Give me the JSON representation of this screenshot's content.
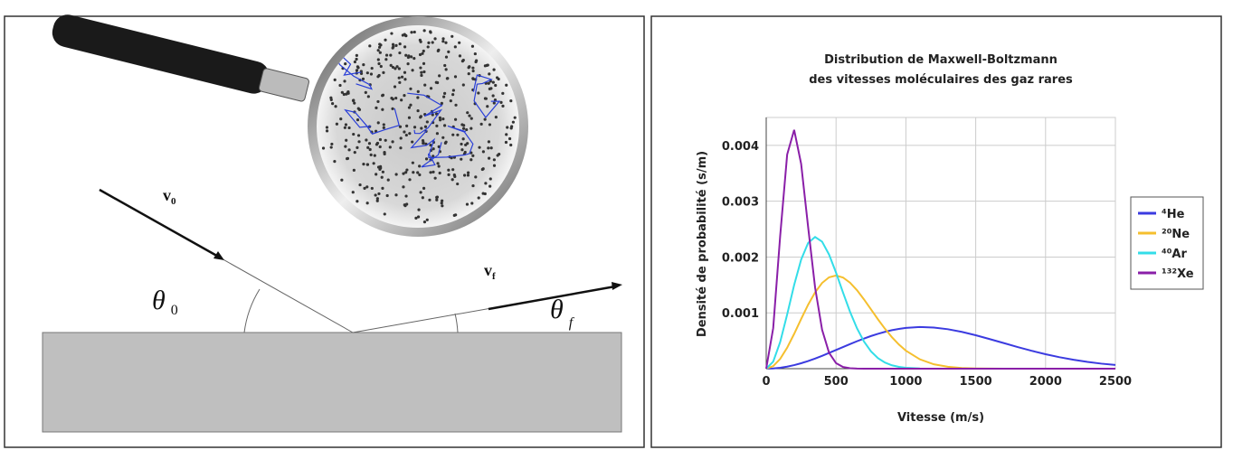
{
  "diagram": {
    "incoming": {
      "symbol": "v",
      "subscript": "0"
    },
    "outgoing": {
      "symbol": "v",
      "subscript": "f"
    },
    "angle_in": {
      "symbol": "θ",
      "subscript": "0"
    },
    "angle_out": {
      "symbol": "θ",
      "subscript": "f"
    }
  },
  "chart_data": {
    "type": "line",
    "title": [
      "Distribution de Maxwell-Boltzmann",
      "des vitesses moléculaires des gaz rares"
    ],
    "x_label": "Vitesse (m/s)",
    "y_label": "Densité de probabilité (s/m)",
    "x": [
      0,
      50,
      100,
      150,
      200,
      250,
      300,
      350,
      400,
      450,
      500,
      550,
      600,
      650,
      700,
      750,
      800,
      850,
      900,
      950,
      1000,
      1100,
      1200,
      1300,
      1400,
      1500,
      1600,
      1700,
      1800,
      1900,
      2000,
      2100,
      2200,
      2300,
      2400,
      2500
    ],
    "series": [
      {
        "name": "⁴He",
        "color": "#3b3be0",
        "values": [
          0,
          4.1e-06,
          1.62e-05,
          3.62e-05,
          6.34e-05,
          9.73e-05,
          0.000137,
          0.0001816,
          0.0002302,
          0.0002815,
          0.0003344,
          0.0003879,
          0.0004407,
          0.0004918,
          0.0005401,
          0.0005847,
          0.0006248,
          0.00066,
          0.0006895,
          0.0007129,
          0.0007303,
          0.0007457,
          0.000737,
          0.0007071,
          0.0006593,
          0.0005988,
          0.0005305,
          0.000459,
          0.0003878,
          0.0003205,
          0.0002593,
          0.0002053,
          0.0001592,
          0.000121,
          9.01e-05,
          6.6e-05
        ]
      },
      {
        "name": "²⁰Ne",
        "color": "#f5bf2e",
        "values": [
          0,
          4.53e-05,
          0.0001758,
          0.0003761,
          0.0006231,
          0.000889,
          0.0011456,
          0.0013676,
          0.0015353,
          0.0016369,
          0.001668,
          0.0016329,
          0.0015406,
          0.0014051,
          0.0012409,
          0.0010631,
          0.0008843,
          0.0007154,
          0.0005636,
          0.0004324,
          0.0003231,
          0.0001675,
          7.88e-05,
          3.37e-05,
          1.31e-05,
          4.7e-06,
          1.5e-06,
          0,
          0,
          0,
          0,
          0,
          0,
          0,
          0,
          0
        ]
      },
      {
        "name": "⁴⁰Ar",
        "color": "#33dde8",
        "values": [
          0,
          0.0001268,
          0.0004773,
          0.0009709,
          0.0014987,
          0.0019529,
          0.0022526,
          0.0023585,
          0.002276,
          0.002044,
          0.0017201,
          0.0013627,
          0.0010197,
          0.0007226,
          0.000486,
          0.0003108,
          0.0001892,
          0.0001098,
          6.07e-05,
          3.21e-05,
          1.62e-05,
          3.6e-06,
          0,
          0,
          0,
          0,
          0,
          0,
          0,
          0,
          0,
          0,
          0,
          0,
          0,
          0
        ]
      },
      {
        "name": "¹³²Xe",
        "color": "#8a1fa8",
        "values": [
          0,
          0.0007264,
          0.0023788,
          0.0038357,
          0.0042773,
          0.0036698,
          0.0025388,
          0.0014528,
          0.000698,
          0.0002845,
          9.91e-05,
          2.96e-05,
          7.6e-06,
          1.7e-06,
          0,
          0,
          0,
          0,
          0,
          0,
          0,
          0,
          0,
          0,
          0,
          0,
          0,
          0,
          0,
          0,
          0,
          0,
          0,
          0,
          0,
          0
        ]
      }
    ],
    "xlim": [
      0,
      2500
    ],
    "xticks": [
      0,
      500,
      1000,
      1500,
      2000,
      2500
    ],
    "ylim": [
      0,
      0.0045
    ],
    "yticks": [
      0.001,
      0.002,
      0.003,
      0.004
    ],
    "grid": true,
    "legend": "right"
  }
}
